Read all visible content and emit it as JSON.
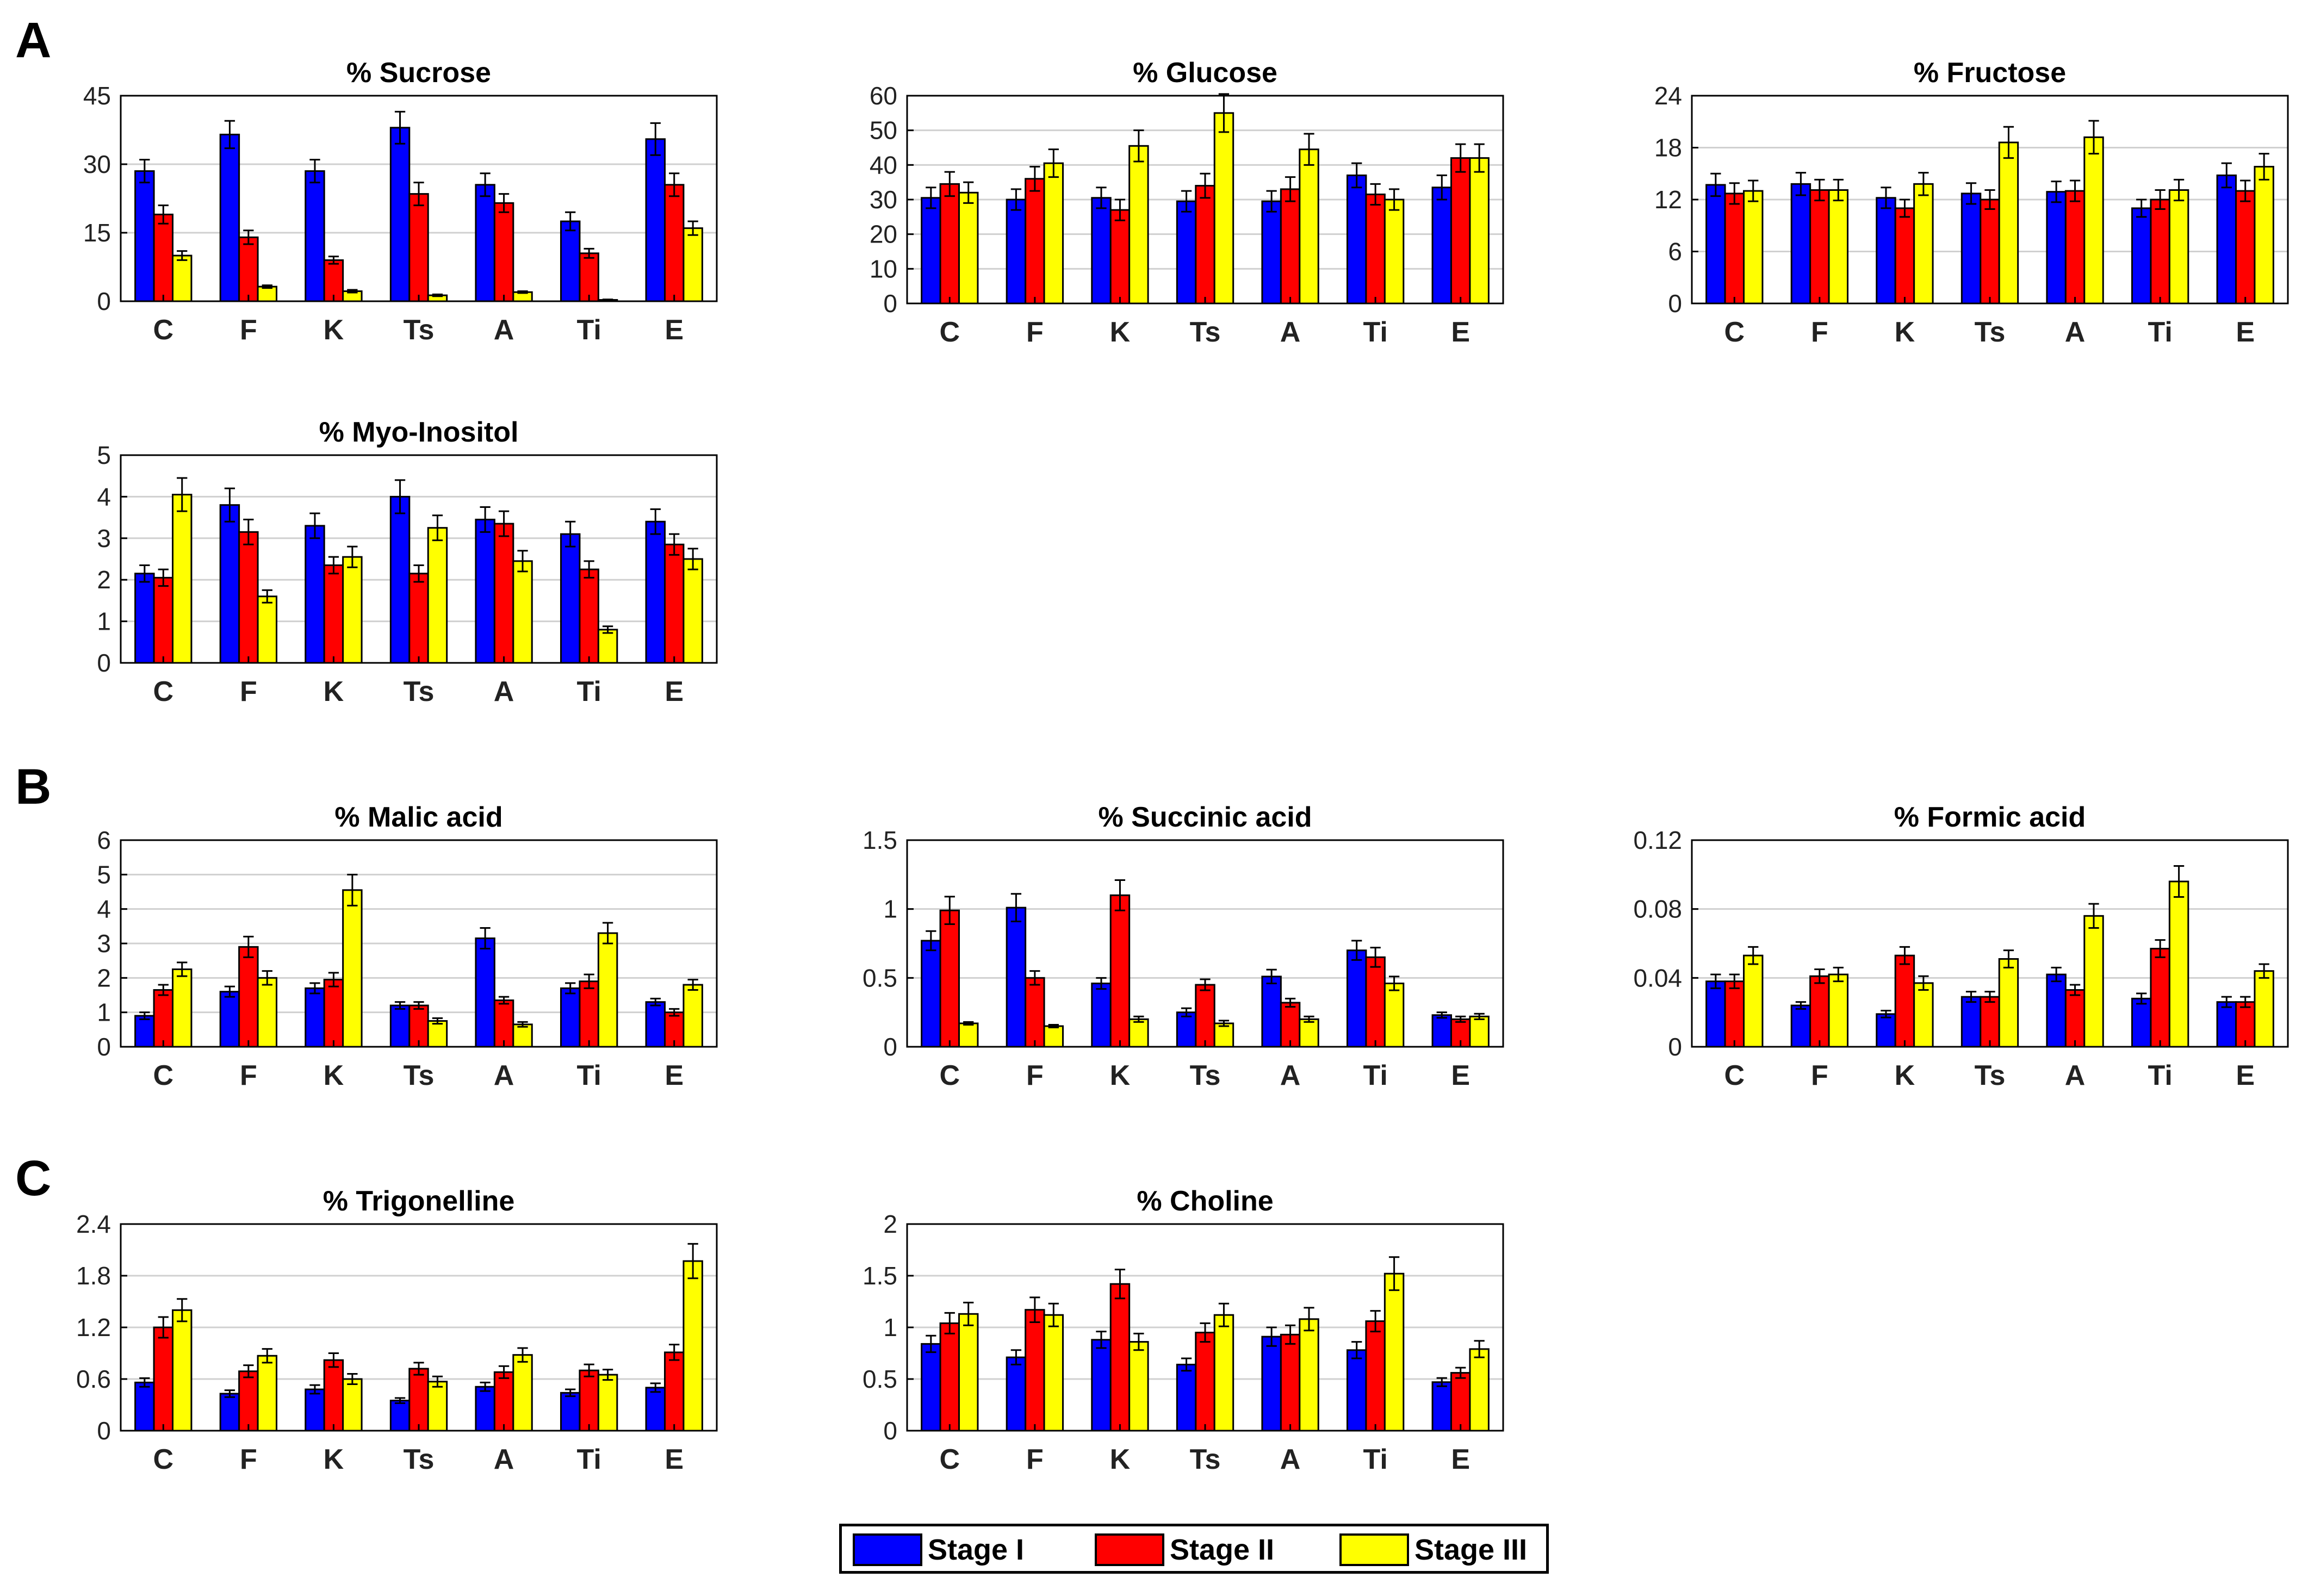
{
  "figure": {
    "panel_labels": [
      "A",
      "B",
      "C"
    ],
    "legend": [
      {
        "label": "Stage I",
        "color": "#0000FF"
      },
      {
        "label": "Stage II",
        "color": "#FF0000"
      },
      {
        "label": "Stage III",
        "color": "#FFFF00"
      }
    ]
  },
  "chart_data": [
    {
      "type": "bar",
      "panel": "A",
      "title": "% Sucrose",
      "categories": [
        "C",
        "F",
        "K",
        "Ts",
        "A",
        "Ti",
        "E"
      ],
      "ylim": [
        0,
        45
      ],
      "yticks": [
        "0",
        "15",
        "30",
        "45"
      ],
      "ytick_values": [
        0,
        15,
        30,
        45
      ],
      "xlabel": "",
      "ylabel": "",
      "grid": true,
      "series": [
        {
          "name": "Stage I",
          "values": [
            28.5,
            36.5,
            28.5,
            38,
            25.5,
            17.5,
            35.5
          ],
          "errors": [
            2.5,
            3,
            2.5,
            3.5,
            2.5,
            2,
            3.5
          ]
        },
        {
          "name": "Stage II",
          "values": [
            19,
            14,
            9,
            23.5,
            21.5,
            10.5,
            25.5
          ],
          "errors": [
            2,
            1.5,
            0.8,
            2.5,
            2,
            1,
            2.5
          ]
        },
        {
          "name": "Stage III",
          "values": [
            10,
            3.2,
            2.2,
            1.3,
            2,
            0.3,
            16
          ],
          "errors": [
            1,
            0.3,
            0.3,
            0.2,
            0.2,
            0.1,
            1.5
          ]
        }
      ]
    },
    {
      "type": "bar",
      "panel": "A",
      "title": "% Glucose",
      "categories": [
        "C",
        "F",
        "K",
        "Ts",
        "A",
        "Ti",
        "E"
      ],
      "ylim": [
        0,
        60
      ],
      "yticks": [
        "0",
        "10",
        "20",
        "30",
        "40",
        "50",
        "60"
      ],
      "ytick_values": [
        0,
        10,
        20,
        30,
        40,
        50,
        60
      ],
      "xlabel": "",
      "ylabel": "",
      "grid": true,
      "series": [
        {
          "name": "Stage I",
          "values": [
            30.5,
            30,
            30.5,
            29.5,
            29.5,
            37,
            33.5
          ],
          "errors": [
            3,
            3,
            3,
            3,
            3,
            3.5,
            3.5
          ]
        },
        {
          "name": "Stage II",
          "values": [
            34.5,
            36,
            27,
            34,
            33,
            31.5,
            42
          ],
          "errors": [
            3.5,
            3.5,
            3,
            3.5,
            3.5,
            3,
            4
          ]
        },
        {
          "name": "Stage III",
          "values": [
            32,
            40.5,
            45.5,
            55,
            44.5,
            30,
            42
          ],
          "errors": [
            3,
            4,
            4.5,
            5.5,
            4.5,
            3,
            4
          ]
        }
      ]
    },
    {
      "type": "bar",
      "panel": "A",
      "title": "% Fructose",
      "categories": [
        "C",
        "F",
        "K",
        "Ts",
        "A",
        "Ti",
        "E"
      ],
      "ylim": [
        0,
        24
      ],
      "yticks": [
        "0",
        "6",
        "12",
        "18",
        "24"
      ],
      "ytick_values": [
        0,
        6,
        12,
        18,
        24
      ],
      "xlabel": "",
      "ylabel": "",
      "grid": true,
      "series": [
        {
          "name": "Stage I",
          "values": [
            13.7,
            13.8,
            12.2,
            12.7,
            12.9,
            11,
            14.8
          ],
          "errors": [
            1.3,
            1.3,
            1.2,
            1.2,
            1.2,
            1,
            1.4
          ]
        },
        {
          "name": "Stage II",
          "values": [
            12.7,
            13.1,
            11,
            12,
            13,
            12,
            13
          ],
          "errors": [
            1.2,
            1.2,
            1,
            1.1,
            1.2,
            1.1,
            1.2
          ]
        },
        {
          "name": "Stage III",
          "values": [
            13,
            13.1,
            13.8,
            18.6,
            19.2,
            13.1,
            15.8
          ],
          "errors": [
            1.2,
            1.2,
            1.3,
            1.8,
            1.9,
            1.2,
            1.5
          ]
        }
      ]
    },
    {
      "type": "bar",
      "panel": "A",
      "title": "% Myo-Inositol",
      "categories": [
        "C",
        "F",
        "K",
        "Ts",
        "A",
        "Ti",
        "E"
      ],
      "ylim": [
        0,
        5
      ],
      "yticks": [
        "0",
        "1",
        "2",
        "3",
        "4",
        "5"
      ],
      "ytick_values": [
        0,
        1,
        2,
        3,
        4,
        5
      ],
      "xlabel": "",
      "ylabel": "",
      "grid": true,
      "series": [
        {
          "name": "Stage I",
          "values": [
            2.15,
            3.8,
            3.3,
            4,
            3.45,
            3.1,
            3.4
          ],
          "errors": [
            0.2,
            0.4,
            0.3,
            0.4,
            0.3,
            0.3,
            0.3
          ]
        },
        {
          "name": "Stage II",
          "values": [
            2.05,
            3.15,
            2.35,
            2.15,
            3.35,
            2.25,
            2.85
          ],
          "errors": [
            0.2,
            0.3,
            0.2,
            0.2,
            0.3,
            0.2,
            0.25
          ]
        },
        {
          "name": "Stage III",
          "values": [
            4.05,
            1.6,
            2.55,
            3.25,
            2.45,
            0.8,
            2.5
          ],
          "errors": [
            0.4,
            0.15,
            0.25,
            0.3,
            0.25,
            0.08,
            0.25
          ]
        }
      ]
    },
    {
      "type": "bar",
      "panel": "B",
      "title": "% Malic acid",
      "categories": [
        "C",
        "F",
        "K",
        "Ts",
        "A",
        "Ti",
        "E"
      ],
      "ylim": [
        0,
        6
      ],
      "yticks": [
        "0",
        "1",
        "2",
        "3",
        "4",
        "5",
        "6"
      ],
      "ytick_values": [
        0,
        1,
        2,
        3,
        4,
        5,
        6
      ],
      "xlabel": "",
      "ylabel": "",
      "grid": true,
      "series": [
        {
          "name": "Stage I",
          "values": [
            0.9,
            1.6,
            1.7,
            1.2,
            3.15,
            1.7,
            1.3
          ],
          "errors": [
            0.1,
            0.15,
            0.15,
            0.1,
            0.3,
            0.15,
            0.1
          ]
        },
        {
          "name": "Stage II",
          "values": [
            1.65,
            2.9,
            1.95,
            1.2,
            1.35,
            1.9,
            1.0
          ],
          "errors": [
            0.15,
            0.3,
            0.2,
            0.1,
            0.1,
            0.2,
            0.1
          ]
        },
        {
          "name": "Stage III",
          "values": [
            2.25,
            2.0,
            4.55,
            0.75,
            0.65,
            3.3,
            1.8
          ],
          "errors": [
            0.2,
            0.2,
            0.45,
            0.08,
            0.07,
            0.3,
            0.15
          ]
        }
      ]
    },
    {
      "type": "bar",
      "panel": "B",
      "title": "% Succinic acid",
      "categories": [
        "C",
        "F",
        "K",
        "Ts",
        "A",
        "Ti",
        "E"
      ],
      "ylim": [
        0,
        1.5
      ],
      "yticks": [
        "0",
        "0.5",
        "1",
        "1.5"
      ],
      "ytick_values": [
        0,
        0.5,
        1,
        1.5
      ],
      "xlabel": "",
      "ylabel": "",
      "grid": true,
      "series": [
        {
          "name": "Stage I",
          "values": [
            0.77,
            1.01,
            0.46,
            0.25,
            0.51,
            0.7,
            0.23
          ],
          "errors": [
            0.07,
            0.1,
            0.04,
            0.03,
            0.05,
            0.07,
            0.02
          ]
        },
        {
          "name": "Stage II",
          "values": [
            0.99,
            0.5,
            1.1,
            0.45,
            0.32,
            0.65,
            0.2
          ],
          "errors": [
            0.1,
            0.05,
            0.11,
            0.04,
            0.03,
            0.07,
            0.02
          ]
        },
        {
          "name": "Stage III",
          "values": [
            0.17,
            0.15,
            0.2,
            0.17,
            0.2,
            0.46,
            0.22
          ],
          "errors": [
            0.01,
            0.01,
            0.02,
            0.02,
            0.02,
            0.05,
            0.02
          ]
        }
      ]
    },
    {
      "type": "bar",
      "panel": "B",
      "title": "% Formic acid",
      "categories": [
        "C",
        "F",
        "K",
        "Ts",
        "A",
        "Ti",
        "E"
      ],
      "ylim": [
        0,
        0.12
      ],
      "yticks": [
        "0",
        "0.04",
        "0.08",
        "0.12"
      ],
      "ytick_values": [
        0,
        0.04,
        0.08,
        0.12
      ],
      "xlabel": "",
      "ylabel": "",
      "grid": true,
      "series": [
        {
          "name": "Stage I",
          "values": [
            0.038,
            0.024,
            0.019,
            0.029,
            0.042,
            0.028,
            0.026
          ],
          "errors": [
            0.004,
            0.002,
            0.002,
            0.003,
            0.004,
            0.003,
            0.003
          ]
        },
        {
          "name": "Stage II",
          "values": [
            0.038,
            0.041,
            0.053,
            0.029,
            0.033,
            0.057,
            0.026
          ],
          "errors": [
            0.004,
            0.004,
            0.005,
            0.003,
            0.003,
            0.005,
            0.003
          ]
        },
        {
          "name": "Stage III",
          "values": [
            0.053,
            0.042,
            0.037,
            0.051,
            0.076,
            0.096,
            0.044
          ],
          "errors": [
            0.005,
            0.004,
            0.004,
            0.005,
            0.007,
            0.009,
            0.004
          ]
        }
      ]
    },
    {
      "type": "bar",
      "panel": "C",
      "title": "% Trigonelline",
      "categories": [
        "C",
        "F",
        "K",
        "Ts",
        "A",
        "Ti",
        "E"
      ],
      "ylim": [
        0,
        2.4
      ],
      "yticks": [
        "0",
        "0.6",
        "1.2",
        "1.8",
        "2.4"
      ],
      "ytick_values": [
        0,
        0.6,
        1.2,
        1.8,
        2.4
      ],
      "xlabel": "",
      "ylabel": "",
      "grid": true,
      "series": [
        {
          "name": "Stage I",
          "values": [
            0.56,
            0.43,
            0.48,
            0.35,
            0.51,
            0.44,
            0.5
          ],
          "errors": [
            0.05,
            0.04,
            0.05,
            0.03,
            0.05,
            0.04,
            0.05
          ]
        },
        {
          "name": "Stage II",
          "values": [
            1.2,
            0.69,
            0.82,
            0.72,
            0.68,
            0.7,
            0.91
          ],
          "errors": [
            0.12,
            0.07,
            0.08,
            0.07,
            0.07,
            0.07,
            0.09
          ]
        },
        {
          "name": "Stage III",
          "values": [
            1.4,
            0.87,
            0.6,
            0.57,
            0.88,
            0.65,
            1.97
          ],
          "errors": [
            0.13,
            0.08,
            0.06,
            0.06,
            0.08,
            0.06,
            0.2
          ]
        }
      ]
    },
    {
      "type": "bar",
      "panel": "C",
      "title": "% Choline",
      "categories": [
        "C",
        "F",
        "K",
        "Ts",
        "A",
        "Ti",
        "E"
      ],
      "ylim": [
        0,
        2
      ],
      "yticks": [
        "0",
        "0.5",
        "1",
        "1.5",
        "2"
      ],
      "ytick_values": [
        0,
        0.5,
        1,
        1.5,
        2
      ],
      "xlabel": "",
      "ylabel": "",
      "grid": true,
      "series": [
        {
          "name": "Stage I",
          "values": [
            0.84,
            0.71,
            0.88,
            0.64,
            0.91,
            0.78,
            0.47
          ],
          "errors": [
            0.08,
            0.07,
            0.08,
            0.06,
            0.09,
            0.08,
            0.04
          ]
        },
        {
          "name": "Stage II",
          "values": [
            1.04,
            1.17,
            1.42,
            0.95,
            0.93,
            1.06,
            0.56
          ],
          "errors": [
            0.1,
            0.12,
            0.14,
            0.09,
            0.09,
            0.1,
            0.05
          ]
        },
        {
          "name": "Stage III",
          "values": [
            1.13,
            1.12,
            0.86,
            1.12,
            1.08,
            1.52,
            0.79
          ],
          "errors": [
            0.11,
            0.11,
            0.08,
            0.11,
            0.11,
            0.16,
            0.08
          ]
        }
      ]
    }
  ]
}
